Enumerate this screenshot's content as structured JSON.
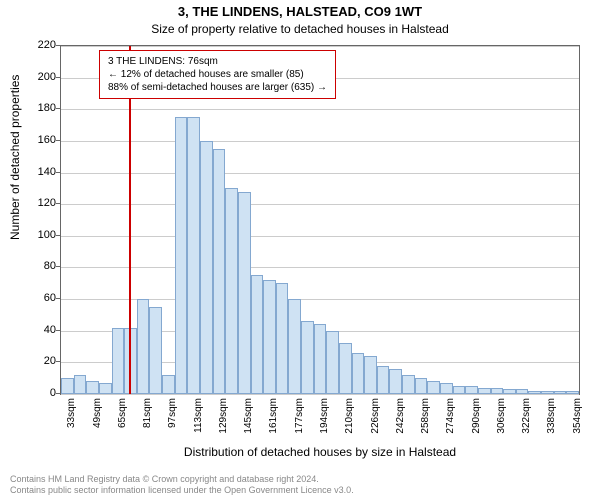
{
  "title": "3, THE LINDENS, HALSTEAD, CO9 1WT",
  "subtitle": "Size of property relative to detached houses in Halstead",
  "ylabel": "Number of detached properties",
  "xlabel": "Distribution of detached houses by size in Halstead",
  "chart": {
    "type": "histogram",
    "ylim": [
      0,
      220
    ],
    "ytick_step": 20,
    "yticks": [
      0,
      20,
      40,
      60,
      80,
      100,
      120,
      140,
      160,
      180,
      200,
      220
    ],
    "x_categories": [
      "33sqm",
      "49sqm",
      "65sqm",
      "81sqm",
      "97sqm",
      "113sqm",
      "129sqm",
      "145sqm",
      "161sqm",
      "177sqm",
      "194sqm",
      "210sqm",
      "226sqm",
      "242sqm",
      "258sqm",
      "274sqm",
      "290sqm",
      "306sqm",
      "322sqm",
      "338sqm",
      "354sqm"
    ],
    "n_bars": 41,
    "values": [
      10,
      12,
      8,
      7,
      42,
      42,
      60,
      55,
      12,
      175,
      175,
      160,
      155,
      130,
      128,
      75,
      72,
      70,
      60,
      46,
      44,
      40,
      32,
      26,
      24,
      18,
      16,
      12,
      10,
      8,
      7,
      5,
      5,
      4,
      4,
      3,
      3,
      2,
      2,
      2,
      2
    ],
    "bar_fill": "#cfe2f3",
    "bar_stroke": "#84a8d0",
    "grid_color": "#cccccc",
    "background_color": "#ffffff",
    "axis_color": "#666666",
    "marker_color": "#cc0000",
    "marker_bar_index": 5.4,
    "label_fontsize": 12,
    "tick_fontsize": 11
  },
  "annotation": {
    "line1": "3 THE LINDENS: 76sqm",
    "line2": "← 12% of detached houses are smaller (85)",
    "line3": "88% of semi-detached houses are larger (635) →",
    "border_color": "#cc0000"
  },
  "footer": {
    "line1": "Contains HM Land Registry data © Crown copyright and database right 2024.",
    "line2": "Contains public sector information licensed under the Open Government Licence v3.0."
  }
}
